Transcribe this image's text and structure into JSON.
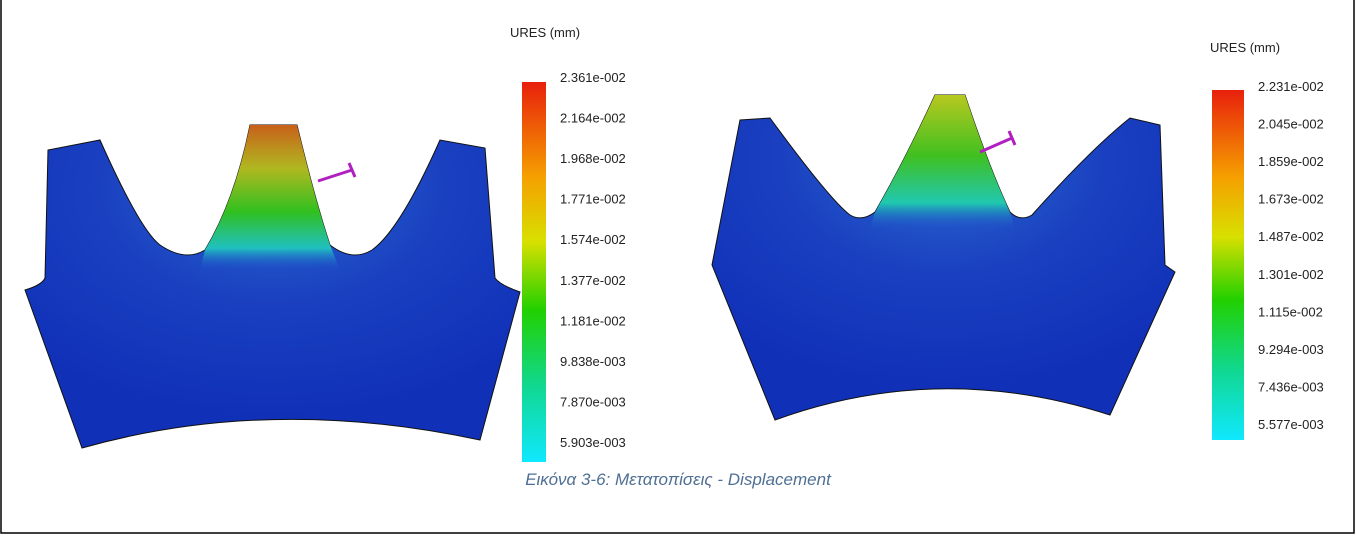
{
  "figures": [
    {
      "legend": {
        "title": "URES (mm)",
        "ticks": [
          "2.361e-002",
          "2.164e-002",
          "1.968e-002",
          "1.771e-002",
          "1.574e-002",
          "1.377e-002",
          "1.181e-002",
          "9.838e-003",
          "7.870e-003",
          "5.903e-003"
        ]
      }
    },
    {
      "legend": {
        "title": "URES (mm)",
        "ticks": [
          "2.231e-002",
          "2.045e-002",
          "1.859e-002",
          "1.673e-002",
          "1.487e-002",
          "1.301e-002",
          "1.115e-002",
          "9.294e-003",
          "7.436e-003",
          "5.577e-003"
        ]
      }
    }
  ],
  "caption": "Εικόνα 3-6: Μετατοπίσεις - Displacement"
}
